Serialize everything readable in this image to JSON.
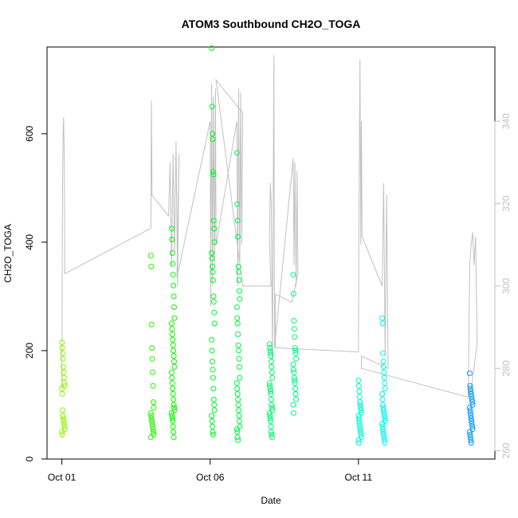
{
  "chart_data": {
    "type": "scatter",
    "title": "ATOM3 Southbound CH2O_TOGA",
    "xlabel": "Date",
    "ylabel": "CH2O_TOGA",
    "x_ticks": [
      "Oct 01",
      "Oct 06",
      "Oct 11"
    ],
    "x_tick_days": [
      1,
      6,
      11
    ],
    "xlim_days": [
      0.5,
      15.6
    ],
    "ylim": [
      0,
      760
    ],
    "y_ticks": [
      0,
      200,
      400,
      600
    ],
    "y2lim": [
      258,
      358
    ],
    "y2_ticks": [
      260,
      280,
      300,
      320,
      340
    ],
    "color_scale": "day-of-month hue: yellow-green (Oct 01) to blue (Oct 15)",
    "series": [
      {
        "day": 1.05,
        "values": [
          215,
          205,
          195,
          185,
          170,
          160,
          150,
          140,
          135,
          130,
          120,
          90,
          80,
          75,
          70,
          65,
          60,
          55,
          50,
          45
        ]
      },
      {
        "day": 4.05,
        "values": [
          375,
          355,
          248,
          205,
          185,
          160,
          135,
          105,
          95,
          85,
          80,
          75,
          70,
          65,
          60,
          55,
          50,
          45,
          40
        ]
      },
      {
        "day": 4.75,
        "values": [
          425,
          405,
          380,
          360,
          340,
          320,
          300,
          280,
          260,
          250,
          240,
          230,
          220,
          210,
          200,
          190,
          180,
          170,
          160,
          150,
          140,
          130,
          120,
          110,
          100,
          95,
          90,
          85,
          80,
          75,
          70,
          60,
          50,
          40
        ]
      },
      {
        "day": 6.1,
        "values": [
          758,
          650,
          600,
          590,
          530,
          525,
          440,
          425,
          400,
          380,
          370,
          355,
          345,
          330,
          300,
          290,
          270,
          250,
          220,
          200,
          180,
          165,
          150,
          130,
          110,
          100,
          90,
          80,
          70,
          60,
          50,
          45
        ]
      },
      {
        "day": 6.95,
        "values": [
          565,
          470,
          440,
          410,
          355,
          345,
          330,
          310,
          295,
          280,
          260,
          250,
          230,
          210,
          200,
          185,
          170,
          150,
          140,
          130,
          120,
          110,
          100,
          90,
          80,
          70,
          60,
          55,
          50,
          40,
          35
        ]
      },
      {
        "day": 8.05,
        "values": [
          212,
          205,
          200,
          195,
          190,
          180,
          170,
          160,
          150,
          140,
          135,
          130,
          125,
          120,
          110,
          100,
          95,
          90,
          85,
          80,
          75,
          70,
          60,
          50,
          45,
          40
        ]
      },
      {
        "day": 8.85,
        "values": [
          340,
          305,
          255,
          240,
          225,
          205,
          200,
          195,
          185,
          175,
          165,
          160,
          150,
          145,
          140,
          130,
          120,
          110,
          100,
          85
        ]
      },
      {
        "day": 11.05,
        "values": [
          145,
          135,
          125,
          115,
          105,
          100,
          95,
          90,
          85,
          80,
          75,
          70,
          65,
          60,
          55,
          50,
          45,
          40,
          35,
          30
        ]
      },
      {
        "day": 11.85,
        "values": [
          260,
          250,
          195,
          180,
          170,
          160,
          150,
          140,
          130,
          120,
          110,
          100,
          95,
          90,
          85,
          80,
          75,
          70,
          65,
          60,
          55,
          50,
          45,
          40,
          35,
          30
        ]
      },
      {
        "day": 14.8,
        "values": [
          158,
          135,
          130,
          125,
          120,
          115,
          110,
          105,
          100,
          95,
          90,
          85,
          80,
          75,
          70,
          65,
          60,
          55,
          50,
          45,
          40,
          35,
          30
        ]
      }
    ],
    "secondary_line": {
      "color": "#c0c0c0",
      "axis": "right",
      "points": [
        [
          1.0,
          275
        ],
        [
          1.02,
          322
        ],
        [
          1.04,
          336
        ],
        [
          1.06,
          341
        ],
        [
          1.08,
          332
        ],
        [
          1.1,
          303
        ],
        [
          4.0,
          314
        ],
        [
          4.02,
          345
        ],
        [
          4.04,
          322
        ],
        [
          4.6,
          317
        ],
        [
          4.65,
          330
        ],
        [
          4.7,
          305
        ],
        [
          4.75,
          332
        ],
        [
          4.8,
          308
        ],
        [
          4.85,
          335
        ],
        [
          4.9,
          300
        ],
        [
          4.95,
          332
        ],
        [
          4.88,
          302
        ],
        [
          6.0,
          340
        ],
        [
          6.02,
          295
        ],
        [
          6.05,
          349
        ],
        [
          6.08,
          300
        ],
        [
          6.11,
          346
        ],
        [
          6.15,
          305
        ],
        [
          6.18,
          348
        ],
        [
          6.2,
          310
        ],
        [
          6.9,
          340
        ],
        [
          6.93,
          300
        ],
        [
          6.96,
          348
        ],
        [
          7.0,
          305
        ],
        [
          7.03,
          347
        ],
        [
          7.06,
          310
        ],
        [
          7.1,
          342
        ],
        [
          6.2,
          350
        ],
        [
          7.1,
          300
        ],
        [
          8.05,
          300
        ],
        [
          8.0,
          312
        ],
        [
          8.03,
          325
        ],
        [
          8.06,
          320
        ],
        [
          8.1,
          282
        ],
        [
          8.15,
          356
        ],
        [
          8.17,
          285
        ],
        [
          8.8,
          331
        ],
        [
          8.83,
          305
        ],
        [
          8.86,
          330
        ],
        [
          8.9,
          300
        ],
        [
          8.93,
          328
        ],
        [
          8.96,
          303
        ],
        [
          8.75,
          296
        ],
        [
          8.2,
          298
        ],
        [
          8.2,
          285
        ],
        [
          11.0,
          284
        ],
        [
          11.02,
          320
        ],
        [
          11.05,
          355
        ],
        [
          11.08,
          310
        ],
        [
          11.1,
          340
        ],
        [
          11.12,
          312
        ],
        [
          11.8,
          300
        ],
        [
          11.85,
          325
        ],
        [
          11.9,
          283
        ],
        [
          11.95,
          322
        ],
        [
          12.0,
          280
        ],
        [
          11.1,
          283
        ],
        [
          11.1,
          280
        ],
        [
          14.7,
          273
        ],
        [
          14.75,
          305
        ],
        [
          14.8,
          310
        ],
        [
          14.85,
          313
        ],
        [
          14.9,
          305
        ],
        [
          14.95,
          312
        ],
        [
          15.0,
          286
        ],
        [
          14.8,
          275
        ]
      ]
    }
  }
}
